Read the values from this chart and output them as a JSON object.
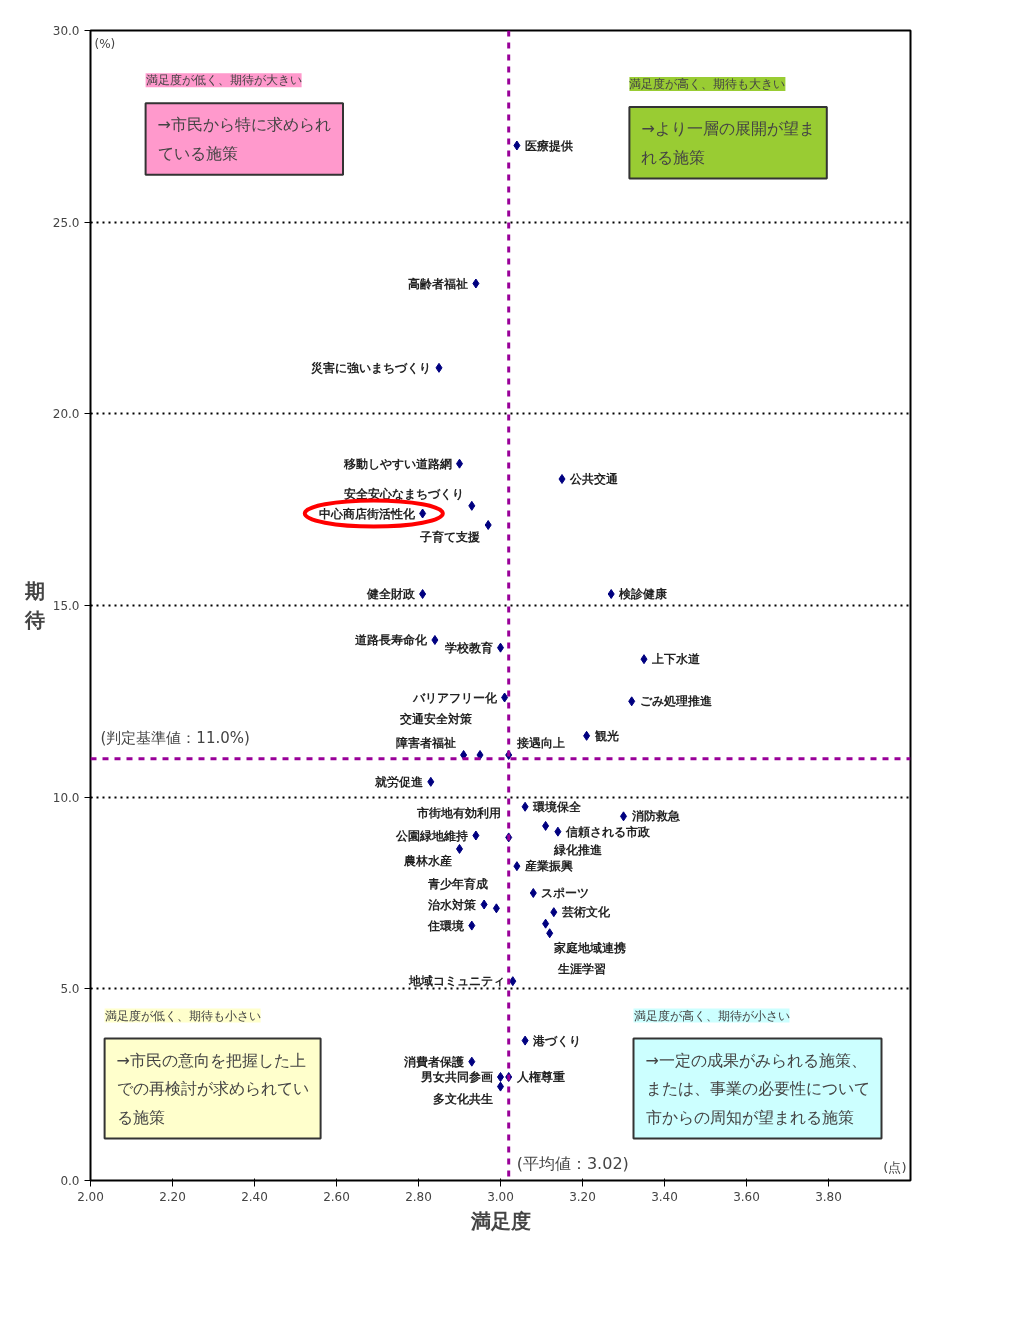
{
  "chart_data": {
    "type": "scatter",
    "xlabel": "満足度",
    "ylabel": "期待",
    "xlim": [
      2,
      4
    ],
    "ylim": [
      0,
      30
    ],
    "xticks": [
      {
        "value": 2,
        "label": "2.00"
      },
      {
        "value": 2.2,
        "label": "2.20"
      },
      {
        "value": 2.4,
        "label": "2.40"
      },
      {
        "value": 2.6,
        "label": "2.60"
      },
      {
        "value": 2.8,
        "label": "2.80"
      },
      {
        "value": 3,
        "label": "3.00"
      },
      {
        "value": 3.2,
        "label": "3.20"
      },
      {
        "value": 3.4,
        "label": "3.40"
      },
      {
        "value": 3.6,
        "label": "3.60"
      },
      {
        "value": 3.8,
        "label": "3.80"
      }
    ],
    "yticks": [
      {
        "value": 0,
        "label": "0.0"
      },
      {
        "value": 5,
        "label": "5.0"
      },
      {
        "value": 10,
        "label": "10.0"
      },
      {
        "value": 15,
        "label": "15.0"
      },
      {
        "value": 20,
        "label": "20.0"
      },
      {
        "value": 25,
        "label": "25.0"
      },
      {
        "value": 30,
        "label": "30.0"
      }
    ],
    "grid": "y",
    "marker": "diamond",
    "series": [
      {
        "color": "#000080",
        "x": [
          3.04,
          2.94,
          2.85,
          2.9,
          3.15,
          2.93,
          2.81,
          2.97,
          2.81,
          3.27,
          2.84,
          3.0,
          3.35,
          3.01,
          3.32,
          3.21,
          2.91,
          2.95,
          3.02,
          2.83,
          3.06,
          3.11,
          3.3,
          3.14,
          2.94,
          3.02,
          2.9,
          3.04,
          3.08,
          2.96,
          2.99,
          3.13,
          2.93,
          3.11,
          3.12,
          3.03,
          3.06,
          2.93,
          3.0,
          3.02,
          3.0
        ],
        "values": [
          27.0,
          23.4,
          21.2,
          18.7,
          18.3,
          17.6,
          17.4,
          17.1,
          15.3,
          15.3,
          14.1,
          13.9,
          13.6,
          12.6,
          12.5,
          11.6,
          11.1,
          11.1,
          11.1,
          10.4,
          9.75,
          9.25,
          9.5,
          9.1,
          9.0,
          8.95,
          8.65,
          8.2,
          7.5,
          7.2,
          7.1,
          7.0,
          6.65,
          6.7,
          6.45,
          5.2,
          3.65,
          3.1,
          2.7,
          2.7,
          2.45
        ]
      }
    ],
    "ref_lines": [
      {
        "axis": "y",
        "value": 11.0,
        "label": "(判定基準値：11.0%)",
        "color": "#990099",
        "line_style": "dashed"
      },
      {
        "axis": "x",
        "value": 3.02,
        "label": "(平均値：3.02)",
        "color": "#990099",
        "line_style": "dashed"
      }
    ],
    "annotations": [
      "(%)",
      "(点)",
      "満足度が低く、期待が大きい",
      "→市民から特に求められている施策",
      "満足度が高く、期待も大きい",
      "→より一層の展開が望まれる施策",
      "満足度が低く、期待も小さい",
      "→市民の意向を把握した上での再検討が求められている施策",
      "満足度が高く、期待が小さい",
      "→一定の成果がみられる施策、または、事業の必要性について市からの周知が望まれる施策",
      {
        "text": "医療提供",
        "x": 3.04,
        "y": 27.0
      },
      {
        "text": "高齢者福祉",
        "x": 2.94,
        "y": 23.4
      },
      {
        "text": "災害に強いまちづくり",
        "x": 2.85,
        "y": 21.2
      },
      {
        "text": "移動しやすい道路網",
        "x": 2.9,
        "y": 18.7
      },
      {
        "text": "公共交通",
        "x": 3.15,
        "y": 18.3
      },
      {
        "text": "安全安心なまちづくり",
        "x": 2.93,
        "y": 17.6
      },
      {
        "text": "中心商店街活性化",
        "x": 2.81,
        "y": 17.4
      },
      {
        "text": "子育て支援",
        "x": 2.97,
        "y": 17.1
      },
      {
        "text": "健全財政",
        "x": 2.81,
        "y": 15.3
      },
      {
        "text": "検診健康",
        "x": 3.27,
        "y": 15.3
      },
      {
        "text": "道路長寿命化",
        "x": 2.84,
        "y": 14.1
      },
      {
        "text": "学校教育",
        "x": 3.0,
        "y": 13.9
      },
      {
        "text": "上下水道",
        "x": 3.35,
        "y": 13.6
      },
      {
        "text": "バリアフリー化",
        "x": 3.01,
        "y": 12.6
      },
      {
        "text": "ごみ処理推進",
        "x": 3.32,
        "y": 12.5
      },
      {
        "text": "観光",
        "x": 3.21,
        "y": 11.6
      },
      {
        "text": "障害者福祉",
        "x": 2.91,
        "y": 11.1
      },
      {
        "text": "交通安全対策",
        "x": 2.95,
        "y": 11.1
      },
      {
        "text": "接遇向上",
        "x": 3.02,
        "y": 11.1
      },
      {
        "text": "就労促進",
        "x": 2.83,
        "y": 10.4
      },
      {
        "text": "環境保全",
        "x": 3.06,
        "y": 9.75
      },
      {
        "text": "緑化推進",
        "x": 3.11,
        "y": 9.25
      },
      {
        "text": "消防救急",
        "x": 3.3,
        "y": 9.5
      },
      {
        "text": "信頼される市政",
        "x": 3.14,
        "y": 9.1
      },
      {
        "text": "公園緑地維持",
        "x": 2.94,
        "y": 9.0
      },
      {
        "text": "市街地有効利用",
        "x": 3.02,
        "y": 8.95
      },
      {
        "text": "農林水産",
        "x": 2.9,
        "y": 8.65
      },
      {
        "text": "産業振興",
        "x": 3.04,
        "y": 8.2
      },
      {
        "text": "スポーツ",
        "x": 3.08,
        "y": 7.5
      },
      {
        "text": "治水対策",
        "x": 2.96,
        "y": 7.2
      },
      {
        "text": "青少年育成",
        "x": 2.99,
        "y": 7.1
      },
      {
        "text": "芸術文化",
        "x": 3.13,
        "y": 7.0
      },
      {
        "text": "住環境",
        "x": 2.93,
        "y": 6.65
      },
      {
        "text": "家庭地域連携",
        "x": 3.11,
        "y": 6.7
      },
      {
        "text": "生涯学習",
        "x": 3.12,
        "y": 6.45
      },
      {
        "text": "地域コミュニティ",
        "x": 3.03,
        "y": 5.2
      },
      {
        "text": "港づくり",
        "x": 3.06,
        "y": 3.65
      },
      {
        "text": "消費者保護",
        "x": 2.93,
        "y": 3.1
      },
      {
        "text": "男女共同参画",
        "x": 3.0,
        "y": 2.7
      },
      {
        "text": "人権尊重",
        "x": 3.02,
        "y": 2.7
      },
      {
        "text": "多文化共生",
        "x": 3.0,
        "y": 2.45
      }
    ]
  }
}
